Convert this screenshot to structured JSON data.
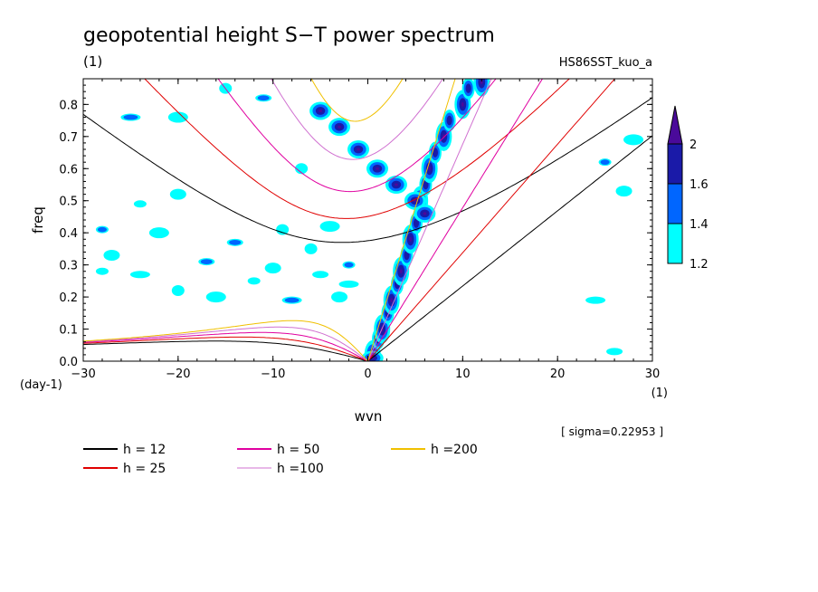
{
  "chart_data": {
    "type": "contour",
    "title": "geopotential height S−T power spectrum",
    "subtitle_left": "(1)",
    "subtitle_right": "HS86SST_kuo_a",
    "xlabel": "wvn",
    "ylabel": "freq",
    "x_unit_label": "(1)",
    "y_unit_label": "(day-1)",
    "sigma_note": "[ sigma=0.22953 ]",
    "xlim": [
      -30,
      30
    ],
    "ylim": [
      0,
      0.88
    ],
    "x_ticks": [
      -30,
      -20,
      -10,
      0,
      10,
      20,
      30
    ],
    "x_tick_labels": [
      "−30",
      "−20",
      "−10",
      "0",
      "10",
      "20",
      "30"
    ],
    "y_ticks": [
      0,
      0.1,
      0.2,
      0.3,
      0.4,
      0.5,
      0.6,
      0.7,
      0.8
    ],
    "y_tick_labels": [
      "0.0",
      "0.1",
      "0.2",
      "0.3",
      "0.4",
      "0.5",
      "0.6",
      "0.7",
      "0.8"
    ],
    "colorbar": {
      "levels": [
        1.2,
        1.4,
        1.6,
        2
      ],
      "level_labels": [
        "1.2",
        "1.4",
        "1.6",
        "2"
      ],
      "colors": [
        "#00ffff",
        "#0066ff",
        "#1a1aa8",
        "#4a0a9a"
      ]
    },
    "dispersion_curves": [
      {
        "name": "h = 12",
        "h": 12,
        "color": "#000000"
      },
      {
        "name": "h = 25",
        "h": 25,
        "color": "#e00000"
      },
      {
        "name": "h = 50",
        "h": 50,
        "color": "#e000a0"
      },
      {
        "name": "h =100",
        "h": 100,
        "color": "#d070d0"
      },
      {
        "name": "h =200",
        "h": 200,
        "color": "#f0c000"
      }
    ],
    "features": {
      "kelvin_ridge": [
        [
          0.5,
          0.02
        ],
        [
          1.5,
          0.1
        ],
        [
          2.5,
          0.19
        ],
        [
          3.5,
          0.28
        ],
        [
          4.5,
          0.38
        ],
        [
          5.5,
          0.5
        ],
        [
          6.5,
          0.6
        ],
        [
          8,
          0.7
        ],
        [
          10,
          0.8
        ],
        [
          12,
          0.87
        ]
      ],
      "ig_band": [
        [
          -5,
          0.78
        ],
        [
          -3,
          0.73
        ],
        [
          -1,
          0.66
        ],
        [
          1,
          0.6
        ],
        [
          3,
          0.55
        ],
        [
          5,
          0.5
        ],
        [
          6,
          0.46
        ]
      ],
      "scattered": [
        [
          -28,
          0.41
        ],
        [
          -27,
          0.33
        ],
        [
          -24,
          0.27
        ],
        [
          -20,
          0.22
        ],
        [
          -17,
          0.31
        ],
        [
          -16,
          0.2
        ],
        [
          -12,
          0.25
        ],
        [
          -10,
          0.29
        ],
        [
          -8,
          0.19
        ],
        [
          -6,
          0.35
        ],
        [
          -5,
          0.27
        ],
        [
          -4,
          0.42
        ],
        [
          -2,
          0.3
        ],
        [
          -3,
          0.2
        ],
        [
          -2,
          0.24
        ],
        [
          -9,
          0.41
        ],
        [
          -14,
          0.37
        ],
        [
          -22,
          0.4
        ],
        [
          -24,
          0.49
        ],
        [
          -20,
          0.52
        ],
        [
          -25,
          0.76
        ],
        [
          -7,
          0.6
        ],
        [
          26,
          0.03
        ],
        [
          28,
          0.69
        ],
        [
          25,
          0.62
        ],
        [
          27,
          0.53
        ],
        [
          24,
          0.19
        ],
        [
          -15,
          0.85
        ],
        [
          -11,
          0.82
        ],
        [
          -20,
          0.76
        ],
        [
          -28,
          0.28
        ]
      ]
    }
  }
}
